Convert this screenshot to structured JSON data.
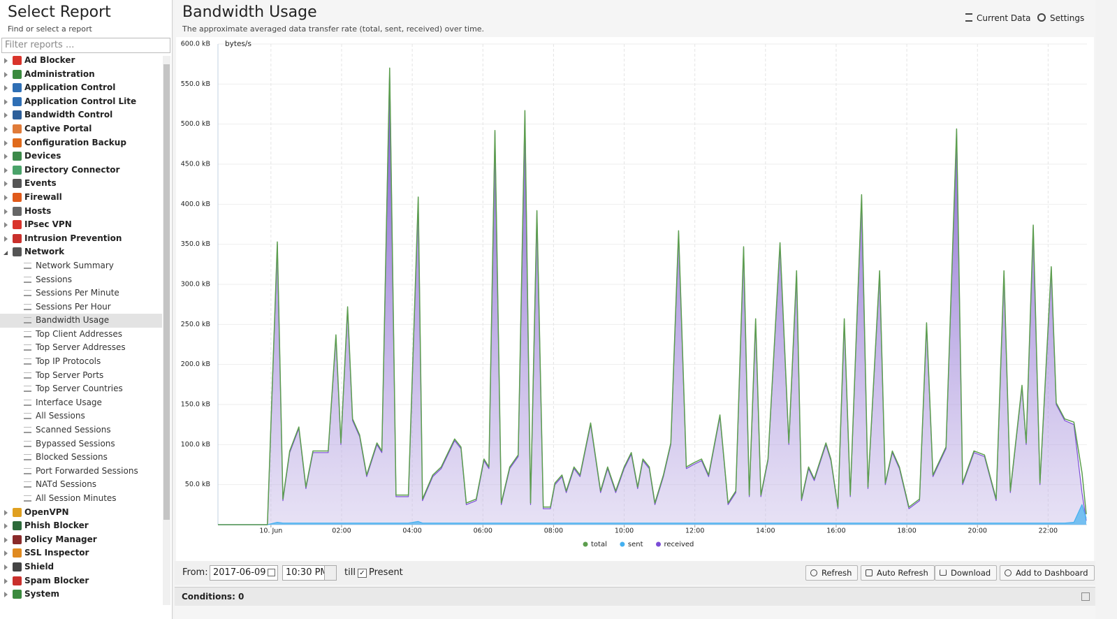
{
  "sidebar": {
    "title": "Select Report",
    "subtitle": "Find or select a report",
    "filter_placeholder": "Filter reports ...",
    "items": [
      {
        "label": "Ad Blocker",
        "color": "#d9342b"
      },
      {
        "label": "Administration",
        "color": "#3b8a3e"
      },
      {
        "label": "Application Control",
        "color": "#2f6fb5"
      },
      {
        "label": "Application Control Lite",
        "color": "#2f6fb5"
      },
      {
        "label": "Bandwidth Control",
        "color": "#2d5f9a"
      },
      {
        "label": "Captive Portal",
        "color": "#e07b39"
      },
      {
        "label": "Configuration Backup",
        "color": "#e06a1b"
      },
      {
        "label": "Devices",
        "color": "#3c8a4a"
      },
      {
        "label": "Directory Connector",
        "color": "#4aa36a"
      },
      {
        "label": "Events",
        "color": "#555555"
      },
      {
        "label": "Firewall",
        "color": "#e05a1a"
      },
      {
        "label": "Hosts",
        "color": "#666666"
      },
      {
        "label": "IPsec VPN",
        "color": "#d9342b"
      },
      {
        "label": "Intrusion Prevention",
        "color": "#c9302c"
      },
      {
        "label": "Network",
        "color": "#555555",
        "expanded": true,
        "children": [
          {
            "label": "Network Summary"
          },
          {
            "label": "Sessions"
          },
          {
            "label": "Sessions Per Minute"
          },
          {
            "label": "Sessions Per Hour"
          },
          {
            "label": "Bandwidth Usage",
            "selected": true
          },
          {
            "label": "Top Client Addresses"
          },
          {
            "label": "Top Server Addresses"
          },
          {
            "label": "Top IP Protocols"
          },
          {
            "label": "Top Server Ports"
          },
          {
            "label": "Top Server Countries"
          },
          {
            "label": "Interface Usage"
          },
          {
            "label": "All Sessions"
          },
          {
            "label": "Scanned Sessions"
          },
          {
            "label": "Bypassed Sessions"
          },
          {
            "label": "Blocked Sessions"
          },
          {
            "label": "Port Forwarded Sessions"
          },
          {
            "label": "NATd Sessions"
          },
          {
            "label": "All Session Minutes"
          }
        ]
      },
      {
        "label": "OpenVPN",
        "color": "#e0a020"
      },
      {
        "label": "Phish Blocker",
        "color": "#2d6a3a"
      },
      {
        "label": "Policy Manager",
        "color": "#8a2a2a"
      },
      {
        "label": "SSL Inspector",
        "color": "#e08a20"
      },
      {
        "label": "Shield",
        "color": "#444444"
      },
      {
        "label": "Spam Blocker",
        "color": "#c9302c"
      },
      {
        "label": "System",
        "color": "#3b8a3e"
      }
    ]
  },
  "header": {
    "title": "Bandwidth Usage",
    "subtitle": "The approximate averaged data transfer rate (total, sent, received) over time.",
    "actions": [
      "Current Data",
      "Settings"
    ]
  },
  "chart_data": {
    "type": "area",
    "y_label": "bytes/s",
    "grid": true,
    "legend": "bottom",
    "xlim": [
      -1.5,
      23.1
    ],
    "ylim": [
      0,
      600
    ],
    "xticks": [
      {
        "value": 0,
        "label": "10. Jun"
      },
      {
        "value": 2,
        "label": "02:00"
      },
      {
        "value": 4,
        "label": "04:00"
      },
      {
        "value": 6,
        "label": "06:00"
      },
      {
        "value": 8,
        "label": "08:00"
      },
      {
        "value": 10,
        "label": "10:00"
      },
      {
        "value": 12,
        "label": "12:00"
      },
      {
        "value": 14,
        "label": "14:00"
      },
      {
        "value": 16,
        "label": "16:00"
      },
      {
        "value": 18,
        "label": "18:00"
      },
      {
        "value": 20,
        "label": "20:00"
      },
      {
        "value": 22,
        "label": "22:00"
      }
    ],
    "yticks": [
      {
        "value": 50,
        "label": "50.0 kB"
      },
      {
        "value": 100,
        "label": "100.0 kB"
      },
      {
        "value": 150,
        "label": "150.0 kB"
      },
      {
        "value": 200,
        "label": "200.0 kB"
      },
      {
        "value": 250,
        "label": "250.0 kB"
      },
      {
        "value": 300,
        "label": "300.0 kB"
      },
      {
        "value": 350,
        "label": "350.0 kB"
      },
      {
        "value": 400,
        "label": "400.0 kB"
      },
      {
        "value": 450,
        "label": "450.0 kB"
      },
      {
        "value": 500,
        "label": "500.0 kB"
      },
      {
        "value": 550,
        "label": "550.0 kB"
      },
      {
        "value": 600,
        "label": "600.0 kB"
      }
    ],
    "x": [
      -1.5,
      -0.1,
      0.18,
      0.34,
      0.53,
      0.79,
      0.99,
      1.19,
      1.42,
      1.62,
      1.84,
      1.98,
      2.17,
      2.31,
      2.51,
      2.71,
      3.0,
      3.14,
      3.36,
      3.54,
      3.89,
      4.17,
      4.29,
      4.58,
      4.82,
      5.2,
      5.38,
      5.53,
      5.81,
      6.03,
      6.17,
      6.34,
      6.52,
      6.76,
      7.0,
      7.19,
      7.35,
      7.53,
      7.71,
      7.91,
      8.04,
      8.24,
      8.36,
      8.58,
      8.75,
      9.05,
      9.33,
      9.53,
      9.76,
      10.0,
      10.2,
      10.38,
      10.53,
      10.71,
      10.87,
      11.11,
      11.32,
      11.54,
      11.76,
      11.96,
      12.19,
      12.39,
      12.71,
      12.94,
      13.16,
      13.38,
      13.54,
      13.72,
      13.87,
      14.07,
      14.41,
      14.66,
      14.88,
      15.02,
      15.22,
      15.38,
      15.71,
      15.85,
      16.05,
      16.23,
      16.4,
      16.72,
      16.9,
      17.23,
      17.39,
      17.59,
      17.79,
      18.06,
      18.36,
      18.56,
      18.74,
      19.11,
      19.41,
      19.58,
      19.9,
      20.2,
      20.53,
      20.75,
      20.93,
      21.26,
      21.38,
      21.58,
      21.77,
      22.09,
      22.23,
      22.47,
      22.73,
      22.96,
      23.08
    ],
    "series": [
      {
        "name": "total",
        "color": "#5c9e4e",
        "values": [
          0,
          0,
          353,
          32,
          92,
          122,
          47,
          92,
          92,
          92,
          237,
          102,
          272,
          132,
          112,
          62,
          102,
          92,
          570,
          37,
          37,
          409,
          32,
          62,
          72,
          107,
          97,
          27,
          32,
          82,
          72,
          492,
          27,
          72,
          87,
          517,
          27,
          392,
          22,
          22,
          52,
          62,
          42,
          72,
          62,
          127,
          42,
          72,
          42,
          72,
          90,
          47,
          82,
          72,
          27,
          62,
          102,
          367,
          72,
          77,
          82,
          62,
          137,
          27,
          42,
          347,
          37,
          257,
          37,
          82,
          352,
          102,
          317,
          32,
          72,
          57,
          102,
          82,
          22,
          257,
          37,
          412,
          47,
          317,
          52,
          92,
          72,
          22,
          32,
          252,
          62,
          97,
          494,
          52,
          92,
          87,
          32,
          317,
          42,
          174,
          102,
          374,
          52,
          322,
          152,
          132,
          128,
          65,
          13
        ]
      },
      {
        "name": "sent",
        "color": "#44b0f0",
        "values": [
          0,
          0,
          3,
          2,
          2,
          2,
          2,
          2,
          2,
          2,
          2,
          2,
          2,
          2,
          2,
          2,
          2,
          2,
          2,
          2,
          2,
          4,
          2,
          2,
          2,
          2,
          2,
          2,
          2,
          2,
          2,
          2,
          2,
          2,
          2,
          2,
          2,
          2,
          2,
          2,
          2,
          2,
          2,
          2,
          2,
          2,
          2,
          2,
          2,
          2,
          2,
          2,
          2,
          2,
          2,
          2,
          2,
          2,
          2,
          2,
          2,
          2,
          2,
          2,
          2,
          2,
          2,
          2,
          2,
          2,
          2,
          2,
          2,
          2,
          2,
          2,
          2,
          2,
          2,
          2,
          2,
          2,
          2,
          2,
          2,
          2,
          2,
          2,
          2,
          2,
          2,
          2,
          2,
          2,
          2,
          2,
          2,
          2,
          2,
          2,
          2,
          2,
          2,
          2,
          2,
          2,
          3,
          25,
          8
        ]
      },
      {
        "name": "received",
        "color": "#7a4cd6",
        "values": [
          0,
          0,
          350,
          30,
          90,
          120,
          45,
          90,
          90,
          90,
          235,
          100,
          270,
          130,
          110,
          60,
          100,
          90,
          568,
          35,
          35,
          405,
          30,
          60,
          70,
          105,
          95,
          25,
          30,
          80,
          70,
          490,
          25,
          70,
          85,
          515,
          25,
          390,
          20,
          20,
          50,
          60,
          40,
          70,
          60,
          125,
          40,
          70,
          40,
          70,
          88,
          45,
          80,
          70,
          25,
          60,
          100,
          365,
          70,
          75,
          80,
          60,
          135,
          25,
          40,
          345,
          35,
          255,
          35,
          80,
          350,
          100,
          315,
          30,
          70,
          55,
          100,
          80,
          20,
          255,
          35,
          410,
          45,
          315,
          50,
          90,
          70,
          20,
          30,
          250,
          60,
          95,
          492,
          50,
          90,
          85,
          30,
          315,
          40,
          172,
          100,
          372,
          50,
          320,
          150,
          130,
          125,
          40,
          5
        ]
      }
    ]
  },
  "toolbar": {
    "from_label": "From:",
    "date": "2017-06-09",
    "time": "10:30 PM",
    "till_label": "till",
    "present": "Present",
    "present_checked": true,
    "buttons": [
      "Refresh",
      "Auto Refresh",
      "Download",
      "Add to Dashboard"
    ]
  },
  "conditions": "Conditions: 0"
}
